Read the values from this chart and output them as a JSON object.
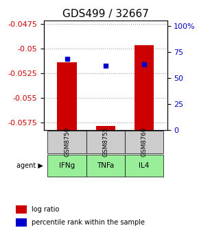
{
  "title": "GDS499 / 32667",
  "samples": [
    "GSM8750",
    "GSM8755",
    "GSM8760"
  ],
  "agents": [
    "IFNg",
    "TNFa",
    "IL4"
  ],
  "log_ratios": [
    -0.0514,
    -0.0578,
    -0.0497
  ],
  "percentile_ranks": [
    68,
    62,
    63
  ],
  "ylim_left": [
    -0.0582,
    -0.0472
  ],
  "ylim_right": [
    0,
    105
  ],
  "yticks_left": [
    -0.0575,
    -0.055,
    -0.0525,
    -0.05,
    -0.0475
  ],
  "yticks_right": [
    0,
    25,
    50,
    75,
    100
  ],
  "ytick_labels_right": [
    "0",
    "25",
    "50",
    "75",
    "100%"
  ],
  "bar_color": "#cc0000",
  "dot_color": "#0000cc",
  "sample_bg_color": "#cccccc",
  "agent_bg_color": "#99ee99",
  "grid_color": "#999999",
  "title_fontsize": 11,
  "tick_fontsize": 8,
  "bar_width": 0.5,
  "legend_items": [
    "log ratio",
    "percentile rank within the sample"
  ],
  "legend_colors": [
    "#cc0000",
    "#0000cc"
  ]
}
